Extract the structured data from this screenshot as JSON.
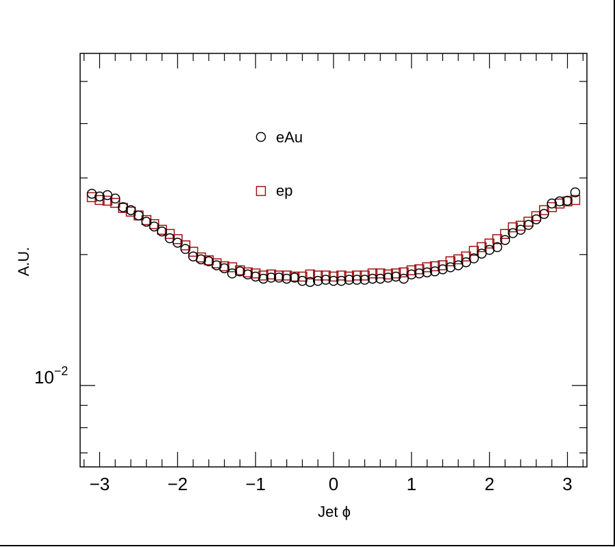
{
  "chart_data": {
    "type": "scatter",
    "title": "",
    "xlabel": "Jet ϕ",
    "ylabel": "A.U.",
    "xlim": [
      -3.25,
      3.25
    ],
    "ylim": [
      0.0065,
      0.058
    ],
    "yscale": "log",
    "x_ticks": [
      -3,
      -2,
      -1,
      0,
      1,
      2,
      3
    ],
    "x_tick_labels": [
      "−3",
      "−2",
      "−1",
      "0",
      "1",
      "2",
      "3"
    ],
    "y_tick_label": {
      "base": "10",
      "exponent": "−2",
      "value": 0.01
    },
    "grid": false,
    "legend_position": "upper-center",
    "colors": {
      "eAu": "#000000",
      "ep": "#a01010"
    },
    "x": [
      -3.1,
      -3.0,
      -2.9,
      -2.8,
      -2.7,
      -2.6,
      -2.5,
      -2.4,
      -2.3,
      -2.2,
      -2.1,
      -2.0,
      -1.9,
      -1.8,
      -1.7,
      -1.6,
      -1.5,
      -1.4,
      -1.3,
      -1.2,
      -1.1,
      -1.0,
      -0.9,
      -0.8,
      -0.7,
      -0.6,
      -0.5,
      -0.4,
      -0.3,
      -0.2,
      -0.1,
      0.0,
      0.1,
      0.2,
      0.3,
      0.4,
      0.5,
      0.6,
      0.7,
      0.8,
      0.9,
      1.0,
      1.1,
      1.2,
      1.3,
      1.4,
      1.5,
      1.6,
      1.7,
      1.8,
      1.9,
      2.0,
      2.1,
      2.2,
      2.3,
      2.4,
      2.5,
      2.6,
      2.7,
      2.8,
      2.9,
      3.0,
      3.1
    ],
    "series": [
      {
        "name": "eAu",
        "marker": "open-circle",
        "values": [
          0.0276,
          0.0272,
          0.0274,
          0.0269,
          0.0257,
          0.0253,
          0.0246,
          0.0238,
          0.0232,
          0.0226,
          0.0218,
          0.0213,
          0.0206,
          0.0198,
          0.0195,
          0.0193,
          0.0189,
          0.0186,
          0.0181,
          0.0183,
          0.018,
          0.0178,
          0.0176,
          0.0177,
          0.0177,
          0.0176,
          0.0177,
          0.0174,
          0.0173,
          0.0174,
          0.0175,
          0.0174,
          0.0174,
          0.0175,
          0.0175,
          0.0175,
          0.0176,
          0.0176,
          0.0177,
          0.0178,
          0.0176,
          0.018,
          0.0181,
          0.0182,
          0.0183,
          0.0185,
          0.0187,
          0.0189,
          0.0192,
          0.0196,
          0.0201,
          0.0205,
          0.0208,
          0.0216,
          0.0224,
          0.0228,
          0.0234,
          0.0241,
          0.0248,
          0.0262,
          0.0265,
          0.0266,
          0.0278
        ]
      },
      {
        "name": "ep",
        "marker": "open-square",
        "values": [
          0.0271,
          0.0267,
          0.0266,
          0.0263,
          0.0256,
          0.0251,
          0.0246,
          0.024,
          0.0235,
          0.0228,
          0.0223,
          0.0217,
          0.021,
          0.0203,
          0.0197,
          0.0194,
          0.0191,
          0.0188,
          0.0187,
          0.0184,
          0.0182,
          0.0181,
          0.0179,
          0.018,
          0.0179,
          0.0179,
          0.0178,
          0.0178,
          0.018,
          0.0179,
          0.0179,
          0.0178,
          0.0179,
          0.0178,
          0.0179,
          0.0179,
          0.0181,
          0.0181,
          0.018,
          0.0181,
          0.0182,
          0.0184,
          0.0185,
          0.0187,
          0.0188,
          0.0189,
          0.0193,
          0.0195,
          0.0198,
          0.0204,
          0.0208,
          0.0212,
          0.0217,
          0.0223,
          0.0231,
          0.0233,
          0.0238,
          0.0245,
          0.0253,
          0.0257,
          0.0262,
          0.0265,
          0.0267
        ]
      }
    ]
  }
}
